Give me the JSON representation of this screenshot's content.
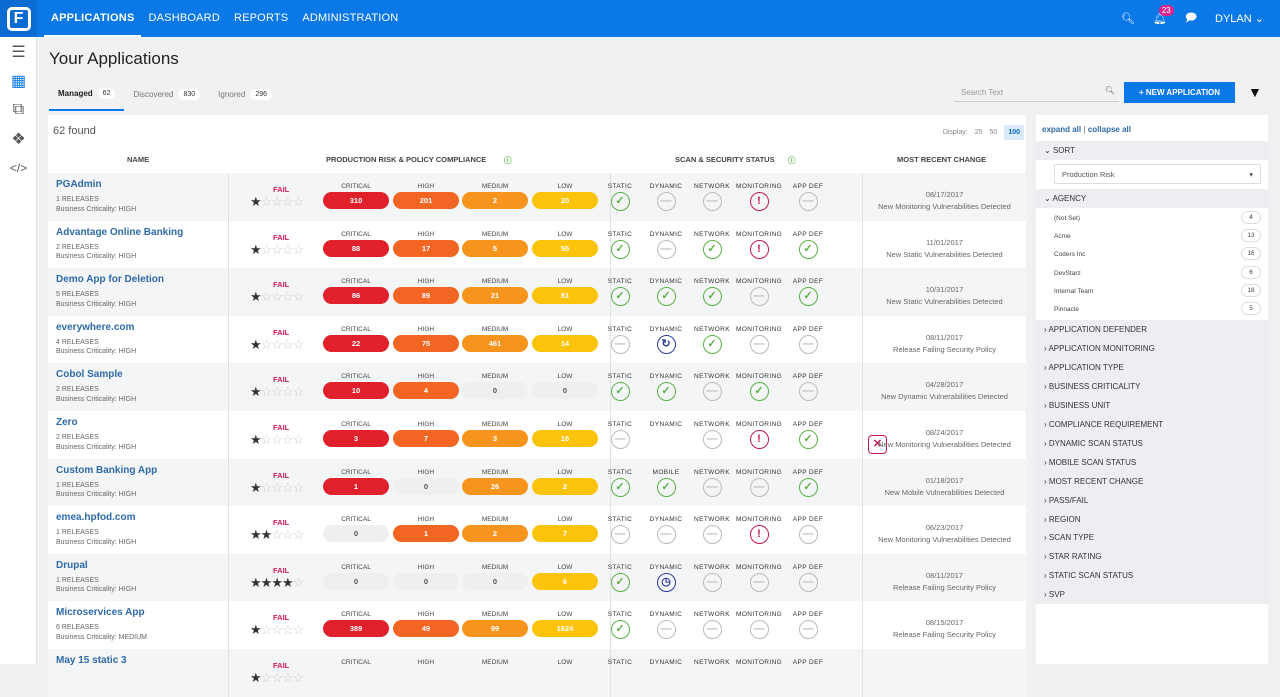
{
  "nav": {
    "items": [
      "APPLICATIONS",
      "DASHBOARD",
      "REPORTS",
      "ADMINISTRATION"
    ],
    "notifications": "23",
    "user": "DYLAN"
  },
  "page": {
    "title": "Your Applications",
    "tabs": [
      {
        "label": "Managed",
        "count": "62"
      },
      {
        "label": "Discovered",
        "count": "830"
      },
      {
        "label": "Ignored",
        "count": "296"
      }
    ],
    "search_placeholder": "Search Text",
    "new_button": "+ NEW APPLICATION",
    "found": "62 found",
    "display_label": "Display:",
    "display_options": [
      "25",
      "50",
      "100"
    ]
  },
  "table": {
    "headers": [
      "NAME",
      "PRODUCTION RISK & POLICY COMPLIANCE",
      "SCAN & SECURITY STATUS",
      "MOST RECENT CHANGE"
    ],
    "severity_labels": [
      "CRITICAL",
      "HIGH",
      "MEDIUM",
      "LOW"
    ],
    "rows": [
      {
        "name": "PGAdmin",
        "releases": "1 RELEASES",
        "criticality": "Business Criticality: HIGH",
        "status": "FAIL",
        "stars": 1,
        "sev": [
          "310",
          "201",
          "2",
          "20"
        ],
        "scan_labels": [
          "STATIC",
          "DYNAMIC",
          "NETWORK",
          "MONITORING",
          "APP DEF"
        ],
        "scans": [
          "check",
          "none",
          "none",
          "alert",
          "none"
        ],
        "date": "08/17/2017",
        "change": "New Monitoring Vulnerabilities Detected"
      },
      {
        "name": "Advantage Online Banking",
        "releases": "2 RELEASES",
        "criticality": "Business Criticality: HIGH",
        "status": "FAIL",
        "stars": 1,
        "sev": [
          "88",
          "17",
          "5",
          "55"
        ],
        "scan_labels": [
          "STATIC",
          "DYNAMIC",
          "NETWORK",
          "MONITORING",
          "APP DEF"
        ],
        "scans": [
          "check",
          "none",
          "check",
          "alert",
          "check"
        ],
        "date": "11/01/2017",
        "change": "New Static Vulnerabilities Detected"
      },
      {
        "name": "Demo App for Deletion",
        "releases": "5 RELEASES",
        "criticality": "Business Criticality: HIGH",
        "status": "FAIL",
        "stars": 1,
        "sev": [
          "86",
          "89",
          "21",
          "81"
        ],
        "scan_labels": [
          "STATIC",
          "DYNAMIC",
          "NETWORK",
          "MONITORING",
          "APP DEF"
        ],
        "scans": [
          "check",
          "check",
          "check",
          "none",
          "check"
        ],
        "date": "10/31/2017",
        "change": "New Static Vulnerabilities Detected"
      },
      {
        "name": "everywhere.com",
        "releases": "4 RELEASES",
        "criticality": "Business Criticality: HIGH",
        "status": "FAIL",
        "stars": 1,
        "sev": [
          "22",
          "75",
          "461",
          "14"
        ],
        "scan_labels": [
          "STATIC",
          "DYNAMIC",
          "NETWORK",
          "MONITORING",
          "APP DEF"
        ],
        "scans": [
          "none",
          "running",
          "check",
          "none",
          "none"
        ],
        "date": "08/11/2017",
        "change": "Release Failing Security Policy"
      },
      {
        "name": "Cobol Sample",
        "releases": "2 RELEASES",
        "criticality": "Business Criticality: HIGH",
        "status": "FAIL",
        "stars": 1,
        "sev": [
          "10",
          "4",
          "0",
          "0"
        ],
        "scan_labels": [
          "STATIC",
          "DYNAMIC",
          "NETWORK",
          "MONITORING",
          "APP DEF"
        ],
        "scans": [
          "check",
          "check",
          "none",
          "check",
          "none"
        ],
        "date": "04/28/2017",
        "change": "New Dynamic Vulnerabilities Detected"
      },
      {
        "name": "Zero",
        "releases": "2 RELEASES",
        "criticality": "Business Criticality: HIGH",
        "status": "FAIL",
        "stars": 1,
        "sev": [
          "3",
          "7",
          "3",
          "16"
        ],
        "scan_labels": [
          "STATIC",
          "DYNAMIC",
          "NETWORK",
          "MONITORING",
          "APP DEF"
        ],
        "scans": [
          "none",
          "fail",
          "none",
          "alert",
          "check"
        ],
        "date": "08/24/2017",
        "change": "New Monitoring Vulnerabilities Detected"
      },
      {
        "name": "Custom Banking App",
        "releases": "1 RELEASES",
        "criticality": "Business Criticality: HIGH",
        "status": "FAIL",
        "stars": 1,
        "sev": [
          "1",
          "0",
          "26",
          "2"
        ],
        "scan_labels": [
          "STATIC",
          "MOBILE",
          "NETWORK",
          "MONITORING",
          "APP DEF"
        ],
        "scans": [
          "check",
          "check",
          "none",
          "none",
          "check"
        ],
        "date": "01/18/2017",
        "change": "New Mobile Vulnerabilities Detected"
      },
      {
        "name": "emea.hpfod.com",
        "releases": "1 RELEASES",
        "criticality": "Business Criticality: HIGH",
        "status": "FAIL",
        "stars": 2,
        "sev": [
          "0",
          "1",
          "2",
          "7"
        ],
        "scan_labels": [
          "STATIC",
          "DYNAMIC",
          "NETWORK",
          "MONITORING",
          "APP DEF"
        ],
        "scans": [
          "none",
          "none",
          "none",
          "alert",
          "none"
        ],
        "date": "06/23/2017",
        "change": "New Monitoring Vulnerabilities Detected"
      },
      {
        "name": "Drupal",
        "releases": "1 RELEASES",
        "criticality": "Business Criticality: HIGH",
        "status": "FAIL",
        "stars": 4,
        "sev": [
          "0",
          "0",
          "0",
          "6"
        ],
        "scan_labels": [
          "STATIC",
          "DYNAMIC",
          "NETWORK",
          "MONITORING",
          "APP DEF"
        ],
        "scans": [
          "check",
          "clock",
          "none",
          "none",
          "none"
        ],
        "date": "08/11/2017",
        "change": "Release Failing Security Policy"
      },
      {
        "name": "Microservices App",
        "releases": "6 RELEASES",
        "criticality": "Business Criticality: MEDIUM",
        "status": "FAIL",
        "stars": 1,
        "sev": [
          "389",
          "49",
          "99",
          "1624"
        ],
        "scan_labels": [
          "STATIC",
          "DYNAMIC",
          "NETWORK",
          "MONITORING",
          "APP DEF"
        ],
        "scans": [
          "check",
          "none",
          "none",
          "none",
          "none"
        ],
        "date": "08/15/2017",
        "change": "Release Failing Security Policy"
      },
      {
        "name": "May 15 static 3",
        "releases": "",
        "criticality": "",
        "status": "FAIL",
        "stars": 1,
        "sev": [
          "",
          "",
          "",
          ""
        ],
        "scan_labels": [
          "STATIC",
          "DYNAMIC",
          "NETWORK",
          "MONITORING",
          "APP DEF"
        ],
        "scans": [],
        "date": "",
        "change": ""
      }
    ]
  },
  "colors": {
    "critical": "#e0202a",
    "high": "#f26522",
    "medium": "#f7941d",
    "low": "#fcc30b",
    "zero": "#eeeff1"
  },
  "filters": {
    "expand_all": "expand all",
    "collapse_all": "collapse all",
    "sort_label": "SORT",
    "sort_value": "Production Risk",
    "agency_label": "AGENCY",
    "agencies": [
      {
        "name": "(Not Set)",
        "count": "4"
      },
      {
        "name": "Acme",
        "count": "13"
      },
      {
        "name": "Coders Inc",
        "count": "16"
      },
      {
        "name": "DevStarz",
        "count": "6"
      },
      {
        "name": "Internal Team",
        "count": "18"
      },
      {
        "name": "Pinnacle",
        "count": "5"
      }
    ],
    "sections": [
      "APPLICATION DEFENDER",
      "APPLICATION MONITORING",
      "APPLICATION TYPE",
      "BUSINESS CRITICALITY",
      "BUSINESS UNIT",
      "COMPLIANCE REQUIREMENT",
      "DYNAMIC SCAN STATUS",
      "MOBILE SCAN STATUS",
      "MOST RECENT CHANGE",
      "PASS/FAIL",
      "REGION",
      "SCAN TYPE",
      "STAR RATING",
      "STATIC SCAN STATUS",
      "SVP"
    ]
  }
}
